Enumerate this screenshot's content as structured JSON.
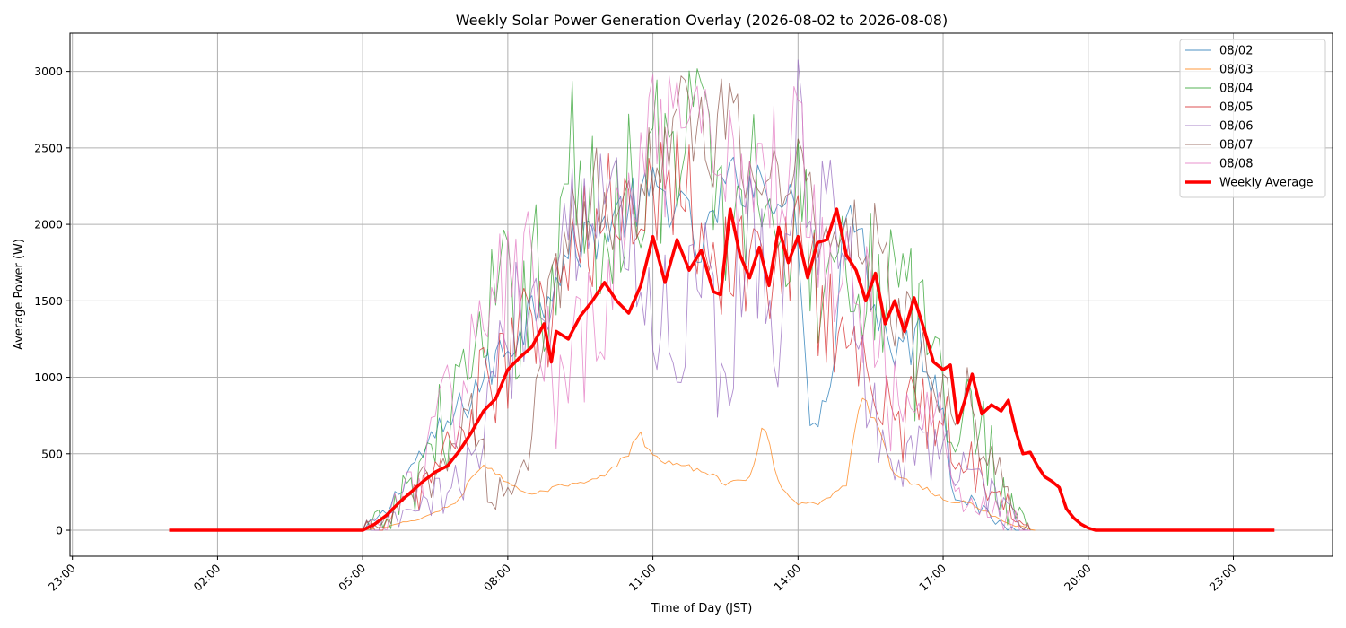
{
  "chart_data": {
    "type": "line",
    "title": "Weekly Solar Power Generation Overlay (2026-08-02 to 2026-08-08)",
    "xlabel": "Time of Day (JST)",
    "ylabel": "Average Power (W)",
    "x_tick_labels": [
      "23:00",
      "02:00",
      "05:00",
      "08:00",
      "11:00",
      "14:00",
      "17:00",
      "20:00",
      "23:00"
    ],
    "x_ticks_hours": [
      -1,
      2,
      5,
      8,
      11,
      14,
      17,
      20,
      23
    ],
    "xlim_hours": [
      -1.05,
      25.05
    ],
    "y_ticks": [
      0,
      500,
      1000,
      1500,
      2000,
      2500,
      3000
    ],
    "ylim": [
      -170,
      3250
    ],
    "grid": true,
    "legend_position": "top-right",
    "series_x_range_hours": [
      1,
      23.85
    ],
    "series": [
      {
        "name": "08/02",
        "color": "#1f77b4",
        "profile": [
          [
            5,
            0
          ],
          [
            5.5,
            120
          ],
          [
            6,
            420
          ],
          [
            6.5,
            600
          ],
          [
            7,
            780
          ],
          [
            7.5,
            1000
          ],
          [
            8,
            1220
          ],
          [
            8.5,
            1450
          ],
          [
            9,
            1700
          ],
          [
            9.5,
            1880
          ],
          [
            10,
            2000
          ],
          [
            10.5,
            2100
          ],
          [
            11,
            2200
          ],
          [
            11.5,
            2150
          ],
          [
            12,
            1800
          ],
          [
            12.5,
            2250
          ],
          [
            13,
            2300
          ],
          [
            13.5,
            2250
          ],
          [
            14,
            2000
          ],
          [
            14.2,
            780
          ],
          [
            14.5,
            800
          ],
          [
            14.8,
            1300
          ],
          [
            15,
            2200
          ],
          [
            15.3,
            2050
          ],
          [
            15.5,
            1500
          ],
          [
            16,
            1200
          ],
          [
            16.5,
            1250
          ],
          [
            17,
            800
          ],
          [
            17.2,
            260
          ],
          [
            17.5,
            200
          ],
          [
            18,
            80
          ],
          [
            18.3,
            20
          ],
          [
            18.8,
            0
          ]
        ],
        "noise": 150
      },
      {
        "name": "08/03",
        "color": "#ff7f0e",
        "profile": [
          [
            5,
            0
          ],
          [
            5.5,
            20
          ],
          [
            6,
            60
          ],
          [
            6.5,
            110
          ],
          [
            7,
            200
          ],
          [
            7.3,
            380
          ],
          [
            7.6,
            420
          ],
          [
            8,
            310
          ],
          [
            8.5,
            230
          ],
          [
            9,
            280
          ],
          [
            9.5,
            300
          ],
          [
            10,
            350
          ],
          [
            10.5,
            500
          ],
          [
            10.7,
            650
          ],
          [
            11,
            480
          ],
          [
            11.5,
            420
          ],
          [
            12,
            400
          ],
          [
            12.5,
            300
          ],
          [
            13,
            350
          ],
          [
            13.3,
            700
          ],
          [
            13.6,
            300
          ],
          [
            14,
            180
          ],
          [
            14.5,
            180
          ],
          [
            15,
            300
          ],
          [
            15.3,
            900
          ],
          [
            15.6,
            700
          ],
          [
            16,
            350
          ],
          [
            16.5,
            300
          ],
          [
            17,
            200
          ],
          [
            17.5,
            180
          ],
          [
            18,
            100
          ],
          [
            18.5,
            30
          ],
          [
            18.9,
            0
          ]
        ],
        "noise": 40
      },
      {
        "name": "08/04",
        "color": "#2ca02c",
        "profile": [
          [
            5,
            0
          ],
          [
            5.5,
            60
          ],
          [
            6,
            300
          ],
          [
            6.5,
            600
          ],
          [
            7,
            900
          ],
          [
            7.5,
            1200
          ],
          [
            8,
            1450
          ],
          [
            8.5,
            1700
          ],
          [
            9,
            1600
          ],
          [
            9.3,
            2500
          ],
          [
            9.6,
            2100
          ],
          [
            10,
            1900
          ],
          [
            10.5,
            2300
          ],
          [
            11,
            2500
          ],
          [
            11.5,
            2300
          ],
          [
            11.9,
            2700
          ],
          [
            12.3,
            2200
          ],
          [
            12.7,
            2000
          ],
          [
            13,
            2300
          ],
          [
            13.5,
            2200
          ],
          [
            14,
            2000
          ],
          [
            14.5,
            1700
          ],
          [
            15,
            1900
          ],
          [
            15.5,
            1700
          ],
          [
            16,
            1500
          ],
          [
            16.5,
            1200
          ],
          [
            17,
            1000
          ],
          [
            17.5,
            700
          ],
          [
            18,
            550
          ],
          [
            18.3,
            200
          ],
          [
            18.8,
            0
          ]
        ],
        "noise": 450
      },
      {
        "name": "08/05",
        "color": "#d62728",
        "profile": [
          [
            5,
            0
          ],
          [
            5.5,
            40
          ],
          [
            6,
            200
          ],
          [
            6.5,
            400
          ],
          [
            7,
            650
          ],
          [
            7.5,
            900
          ],
          [
            8,
            1100
          ],
          [
            8.5,
            1300
          ],
          [
            9,
            1500
          ],
          [
            9.5,
            1800
          ],
          [
            10,
            2000
          ],
          [
            10.5,
            2200
          ],
          [
            11,
            2300
          ],
          [
            11.5,
            2400
          ],
          [
            12,
            2000
          ],
          [
            12.5,
            1700
          ],
          [
            13,
            1800
          ],
          [
            13.5,
            1700
          ],
          [
            14,
            1800
          ],
          [
            14.5,
            1500
          ],
          [
            15,
            1300
          ],
          [
            15.5,
            900
          ],
          [
            16,
            700
          ],
          [
            16.5,
            800
          ],
          [
            17,
            700
          ],
          [
            17.5,
            500
          ],
          [
            18,
            300
          ],
          [
            18.5,
            60
          ],
          [
            18.8,
            0
          ]
        ],
        "noise": 350
      },
      {
        "name": "08/06",
        "color": "#9467bd",
        "profile": [
          [
            5,
            0
          ],
          [
            5.5,
            30
          ],
          [
            6,
            100
          ],
          [
            6.5,
            200
          ],
          [
            7,
            300
          ],
          [
            7.5,
            600
          ],
          [
            8,
            1300
          ],
          [
            8.5,
            1500
          ],
          [
            9,
            1900
          ],
          [
            9.5,
            2100
          ],
          [
            10,
            2200
          ],
          [
            10.5,
            2000
          ],
          [
            11,
            1400
          ],
          [
            11.5,
            1300
          ],
          [
            12,
            1800
          ],
          [
            12.5,
            900
          ],
          [
            13,
            2300
          ],
          [
            13.5,
            1000
          ],
          [
            14,
            2700
          ],
          [
            14.5,
            2000
          ],
          [
            15,
            1800
          ],
          [
            15.5,
            900
          ],
          [
            16,
            400
          ],
          [
            16.5,
            500
          ],
          [
            17,
            600
          ],
          [
            17.5,
            350
          ],
          [
            18,
            200
          ],
          [
            18.5,
            50
          ],
          [
            18.8,
            0
          ]
        ],
        "noise": 380
      },
      {
        "name": "08/07",
        "color": "#8c564b",
        "profile": [
          [
            5,
            0
          ],
          [
            5.5,
            50
          ],
          [
            6,
            200
          ],
          [
            6.5,
            400
          ],
          [
            7,
            600
          ],
          [
            7.3,
            850
          ],
          [
            7.6,
            250
          ],
          [
            8,
            250
          ],
          [
            8.5,
            600
          ],
          [
            9,
            1600
          ],
          [
            9.5,
            2200
          ],
          [
            10,
            2300
          ],
          [
            10.5,
            2000
          ],
          [
            11,
            2500
          ],
          [
            11.5,
            2700
          ],
          [
            12,
            2500
          ],
          [
            12.5,
            2600
          ],
          [
            13,
            2400
          ],
          [
            13.5,
            2300
          ],
          [
            14,
            2300
          ],
          [
            14.5,
            2100
          ],
          [
            15,
            2000
          ],
          [
            15.5,
            1800
          ],
          [
            16,
            1500
          ],
          [
            16.5,
            1200
          ],
          [
            17,
            1050
          ],
          [
            17.5,
            800
          ],
          [
            18,
            500
          ],
          [
            18.5,
            80
          ],
          [
            18.8,
            0
          ]
        ],
        "noise": 300
      },
      {
        "name": "08/08",
        "color": "#e377c2",
        "profile": [
          [
            5,
            0
          ],
          [
            5.5,
            60
          ],
          [
            6,
            300
          ],
          [
            6.5,
            600
          ],
          [
            7,
            950
          ],
          [
            7.5,
            1400
          ],
          [
            8,
            1550
          ],
          [
            8.5,
            1800
          ],
          [
            9,
            700
          ],
          [
            9.5,
            1200
          ],
          [
            10,
            1300
          ],
          [
            10.5,
            2300
          ],
          [
            11,
            2500
          ],
          [
            11.5,
            2400
          ],
          [
            12,
            2450
          ],
          [
            12.5,
            2450
          ],
          [
            13,
            2400
          ],
          [
            13.5,
            2350
          ],
          [
            14,
            2500
          ],
          [
            14.5,
            2000
          ],
          [
            15,
            1800
          ],
          [
            15.5,
            1400
          ],
          [
            16,
            800
          ],
          [
            16.5,
            600
          ],
          [
            17,
            700
          ],
          [
            17.5,
            200
          ],
          [
            18,
            150
          ],
          [
            18.5,
            50
          ],
          [
            18.8,
            0
          ]
        ],
        "noise": 420
      },
      {
        "name": "Weekly Average",
        "color": "#ff0000",
        "line_width": 3.5,
        "values": [
          [
            5.0,
            0
          ],
          [
            5.25,
            40
          ],
          [
            5.5,
            100
          ],
          [
            5.75,
            180
          ],
          [
            6.0,
            250
          ],
          [
            6.25,
            320
          ],
          [
            6.5,
            380
          ],
          [
            6.75,
            420
          ],
          [
            7.0,
            520
          ],
          [
            7.25,
            640
          ],
          [
            7.5,
            780
          ],
          [
            7.75,
            860
          ],
          [
            8.0,
            1050
          ],
          [
            8.25,
            1130
          ],
          [
            8.5,
            1200
          ],
          [
            8.75,
            1350
          ],
          [
            8.9,
            1100
          ],
          [
            9.0,
            1300
          ],
          [
            9.25,
            1250
          ],
          [
            9.5,
            1400
          ],
          [
            9.75,
            1500
          ],
          [
            10.0,
            1620
          ],
          [
            10.25,
            1500
          ],
          [
            10.5,
            1420
          ],
          [
            10.75,
            1600
          ],
          [
            11.0,
            1920
          ],
          [
            11.25,
            1620
          ],
          [
            11.5,
            1900
          ],
          [
            11.75,
            1700
          ],
          [
            12.0,
            1830
          ],
          [
            12.25,
            1560
          ],
          [
            12.4,
            1540
          ],
          [
            12.6,
            2100
          ],
          [
            12.8,
            1800
          ],
          [
            13.0,
            1650
          ],
          [
            13.2,
            1850
          ],
          [
            13.4,
            1600
          ],
          [
            13.6,
            1980
          ],
          [
            13.8,
            1750
          ],
          [
            14.0,
            1920
          ],
          [
            14.2,
            1650
          ],
          [
            14.4,
            1880
          ],
          [
            14.6,
            1900
          ],
          [
            14.8,
            2100
          ],
          [
            15.0,
            1800
          ],
          [
            15.2,
            1700
          ],
          [
            15.4,
            1500
          ],
          [
            15.6,
            1680
          ],
          [
            15.8,
            1350
          ],
          [
            16.0,
            1500
          ],
          [
            16.2,
            1300
          ],
          [
            16.4,
            1520
          ],
          [
            16.6,
            1320
          ],
          [
            16.8,
            1100
          ],
          [
            17.0,
            1050
          ],
          [
            17.15,
            1080
          ],
          [
            17.3,
            700
          ],
          [
            17.45,
            850
          ],
          [
            17.6,
            1020
          ],
          [
            17.8,
            760
          ],
          [
            18.0,
            820
          ],
          [
            18.2,
            780
          ],
          [
            18.35,
            850
          ],
          [
            18.5,
            650
          ],
          [
            18.65,
            500
          ],
          [
            18.8,
            510
          ],
          [
            18.95,
            420
          ],
          [
            19.1,
            350
          ],
          [
            19.25,
            320
          ],
          [
            19.4,
            280
          ],
          [
            19.55,
            140
          ],
          [
            19.7,
            80
          ],
          [
            19.85,
            40
          ],
          [
            20.0,
            15
          ],
          [
            20.15,
            0
          ]
        ]
      }
    ]
  }
}
